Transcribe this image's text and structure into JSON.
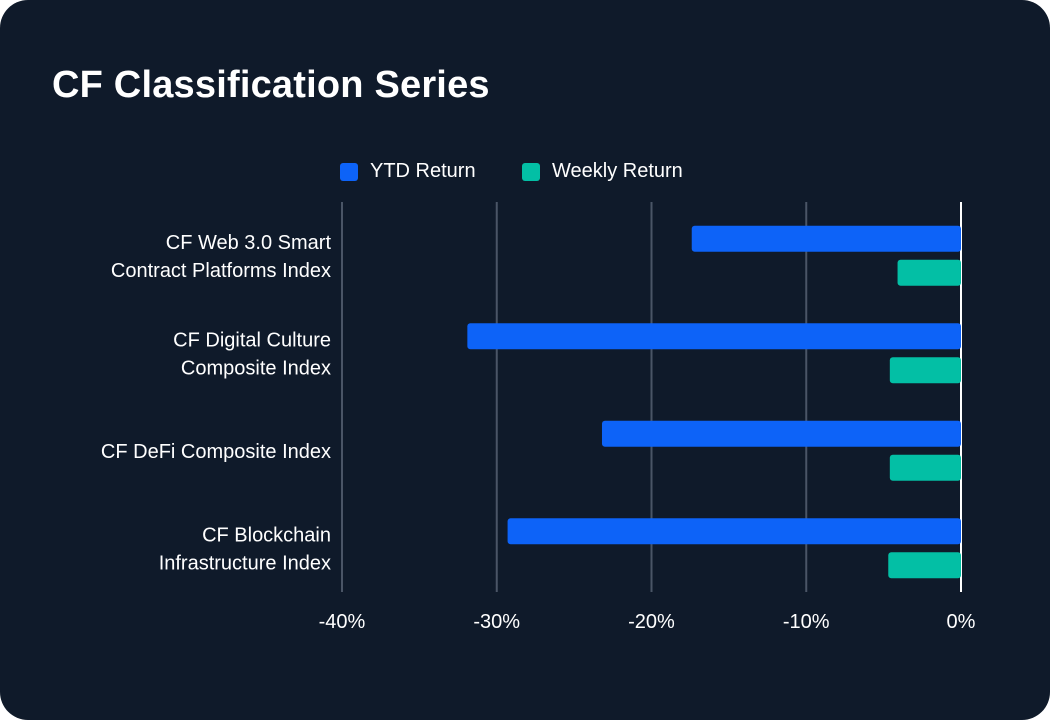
{
  "title": "CF Classification Series",
  "colors": {
    "background": "#0f1a2a",
    "ytd": "#0d63f8",
    "weekly": "#03bfa5",
    "grid": "#4a5566",
    "zero_line": "#ffffff"
  },
  "legend": {
    "ytd_label": "YTD Return",
    "weekly_label": "Weekly Return"
  },
  "chart_data": {
    "type": "bar",
    "orientation": "horizontal",
    "title": "CF Classification Series",
    "categories": [
      [
        "CF Web 3.0 Smart",
        "Contract Platforms Index"
      ],
      [
        "CF Digital Culture",
        "Composite Index"
      ],
      [
        "CF DeFi Composite Index"
      ],
      [
        "CF Blockchain",
        "Infrastructure Index"
      ]
    ],
    "series": [
      {
        "name": "YTD Return",
        "values": [
          -17.4,
          -31.9,
          -23.2,
          -29.3
        ]
      },
      {
        "name": "Weekly Return",
        "values": [
          -4.1,
          -4.6,
          -4.6,
          -4.7
        ]
      }
    ],
    "xlim": [
      -40,
      0
    ],
    "xticks": [
      -40,
      -30,
      -20,
      -10,
      0
    ],
    "tick_labels": [
      "-40%",
      "-30%",
      "-20%",
      "-10%",
      "0%"
    ],
    "grid": true,
    "legend_position": "top-center",
    "xlabel": "",
    "ylabel": ""
  }
}
